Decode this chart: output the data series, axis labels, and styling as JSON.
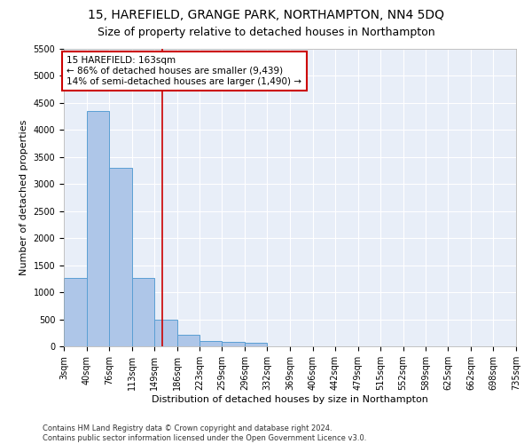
{
  "title_line1": "15, HAREFIELD, GRANGE PARK, NORTHAMPTON, NN4 5DQ",
  "title_line2": "Size of property relative to detached houses in Northampton",
  "xlabel": "Distribution of detached houses by size in Northampton",
  "ylabel": "Number of detached properties",
  "footnote1": "Contains HM Land Registry data © Crown copyright and database right 2024.",
  "footnote2": "Contains public sector information licensed under the Open Government Licence v3.0.",
  "property_label": "15 HAREFIELD: 163sqm",
  "annotation_line1": "← 86% of detached houses are smaller (9,439)",
  "annotation_line2": "14% of semi-detached houses are larger (1,490) →",
  "bin_labels": [
    "3sqm",
    "40sqm",
    "76sqm",
    "113sqm",
    "149sqm",
    "186sqm",
    "223sqm",
    "259sqm",
    "296sqm",
    "332sqm",
    "369sqm",
    "406sqm",
    "442sqm",
    "479sqm",
    "515sqm",
    "552sqm",
    "589sqm",
    "625sqm",
    "662sqm",
    "698sqm",
    "735sqm"
  ],
  "bin_edges": [
    3,
    40,
    76,
    113,
    149,
    186,
    223,
    259,
    296,
    332,
    369,
    406,
    442,
    479,
    515,
    552,
    589,
    625,
    662,
    698,
    735
  ],
  "bar_values": [
    1270,
    4350,
    3300,
    1270,
    490,
    220,
    100,
    75,
    60,
    0,
    0,
    0,
    0,
    0,
    0,
    0,
    0,
    0,
    0,
    0
  ],
  "bar_color": "#aec6e8",
  "bar_edge_color": "#5a9fd4",
  "vline_x": 163,
  "vline_color": "#cc0000",
  "ylim": [
    0,
    5500
  ],
  "yticks": [
    0,
    500,
    1000,
    1500,
    2000,
    2500,
    3000,
    3500,
    4000,
    4500,
    5000,
    5500
  ],
  "bg_color": "#e8eef8",
  "grid_color": "#ffffff",
  "annotation_box_color": "#cc0000",
  "fig_bg": "#ffffff",
  "title_fontsize": 10,
  "subtitle_fontsize": 9,
  "axis_label_fontsize": 8,
  "tick_fontsize": 7,
  "annotation_fontsize": 7.5,
  "footnote_fontsize": 6
}
